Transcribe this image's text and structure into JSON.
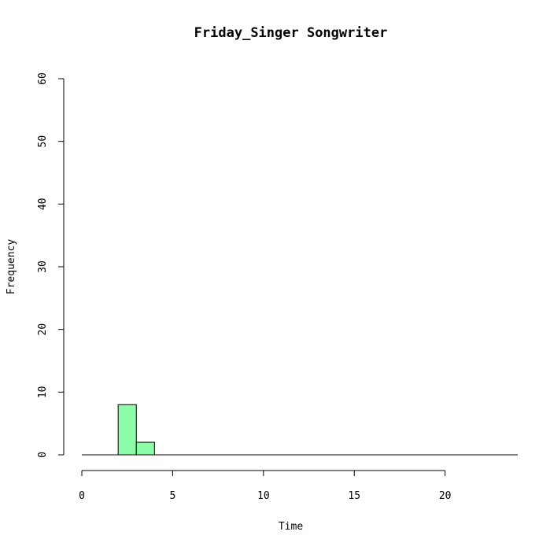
{
  "chart_data": {
    "type": "bar",
    "title": "Friday_Singer Songwriter",
    "xlabel": "Time",
    "ylabel": "Frequency",
    "bins": [
      {
        "start": 2,
        "end": 3,
        "count": 8
      },
      {
        "start": 3,
        "end": 4,
        "count": 2
      }
    ],
    "baseline_range": [
      0,
      24
    ],
    "xlim": [
      0,
      24
    ],
    "ylim": [
      0,
      60
    ],
    "x_ticks": [
      0,
      5,
      10,
      15,
      20
    ],
    "x_tick_labels": [
      "0",
      "5",
      "10",
      "15",
      "20"
    ],
    "y_ticks": [
      0,
      10,
      20,
      30,
      40,
      50,
      60
    ],
    "y_tick_labels": [
      "0",
      "10",
      "20",
      "30",
      "40",
      "50",
      "60"
    ],
    "grid": false,
    "legend": "none",
    "bar_color": "#8dfca9",
    "edge_color": "#000000"
  }
}
